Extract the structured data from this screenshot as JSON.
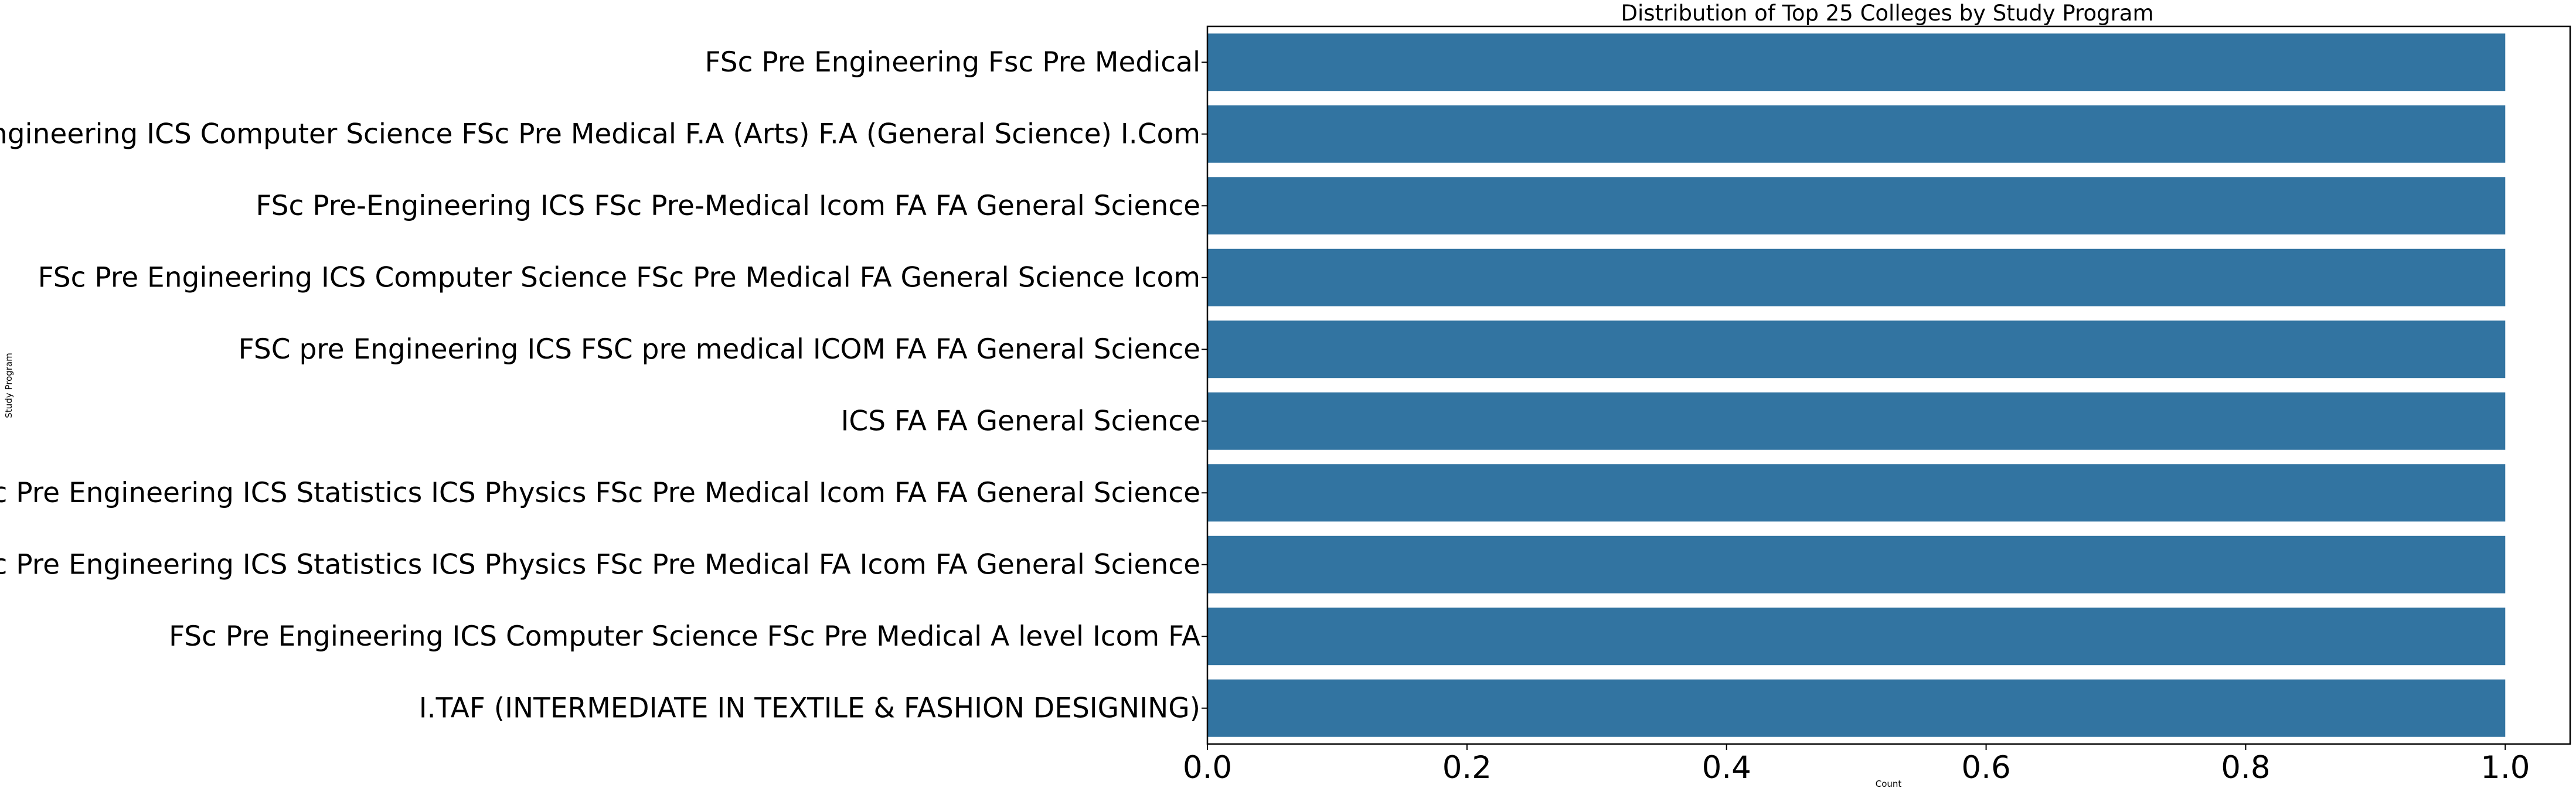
{
  "chart_data": {
    "type": "bar",
    "orientation": "horizontal",
    "title": "Distribution of Top 25 Colleges by Study Program",
    "xlabel": "Count",
    "ylabel": "Study Program",
    "categories": [
      "FSc Pre Engineering Fsc Pre Medical",
      "FSc Pre Engineering ICS Computer Science FSc Pre Medical F.A (Arts) F.A (General Science) I.Com",
      "FSc Pre-Engineering ICS FSc Pre-Medical Icom FA FA General Science",
      "FSc Pre Engineering ICS Computer Science FSc Pre Medical FA General Science Icom",
      "FSC pre Engineering ICS FSC pre medical ICOM FA FA General Science",
      "ICS FA FA General Science",
      "FSc Pre Engineering ICS Statistics ICS Physics FSc Pre Medical Icom FA FA General Science",
      "FSc Pre Engineering ICS Statistics ICS Physics FSc Pre Medical FA Icom FA General Science",
      "FSc Pre Engineering ICS Computer Science FSc Pre Medical A level Icom FA",
      "I.TAF (INTERMEDIATE IN TEXTILE & FASHION DESIGNING)"
    ],
    "values": [
      1,
      1,
      1,
      1,
      1,
      1,
      1,
      1,
      1,
      1
    ],
    "xlim": [
      0,
      1.05
    ],
    "xticks": [
      0.0,
      0.2,
      0.4,
      0.6,
      0.8,
      1.0
    ],
    "xtick_labels": [
      "0.0",
      "0.2",
      "0.4",
      "0.6",
      "0.8",
      "1.0"
    ],
    "grid": false,
    "legend": "none",
    "bar_color": "#3274a1"
  }
}
